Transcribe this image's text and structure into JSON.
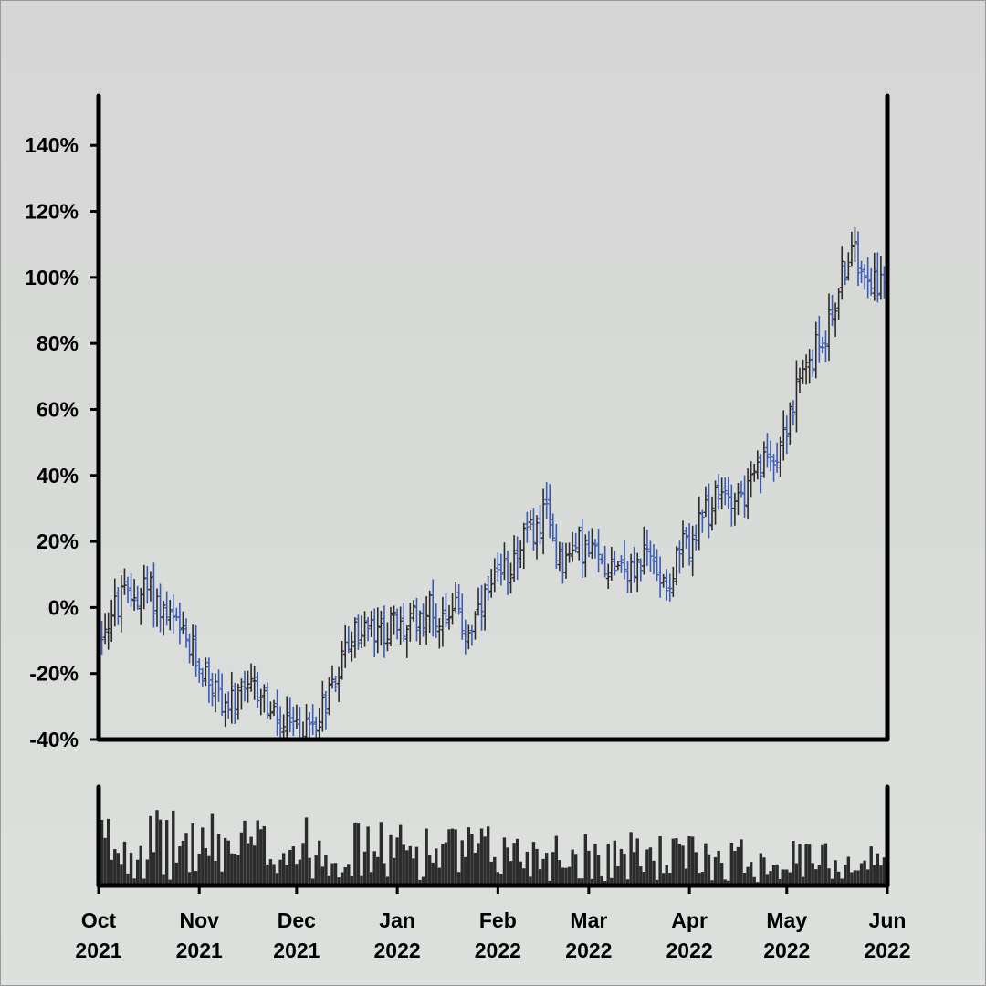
{
  "chart_data": {
    "type": "ohlc",
    "title": "",
    "xlabel": "",
    "ylabel": "",
    "start_date": "2021-10-01",
    "end_date": "2022-06-01",
    "ylim": [
      -40,
      155
    ],
    "y_ticks": [
      {
        "value": 140,
        "label": "140%"
      },
      {
        "value": 120,
        "label": "120%"
      },
      {
        "value": 100,
        "label": "100%"
      },
      {
        "value": 80,
        "label": "80%"
      },
      {
        "value": 60,
        "label": "60%"
      },
      {
        "value": 40,
        "label": "40%"
      },
      {
        "value": 20,
        "label": "20%"
      },
      {
        "value": 0,
        "label": "0%"
      },
      {
        "value": -20,
        "label": "-20%"
      },
      {
        "value": -40,
        "label": "-40%"
      }
    ],
    "x_ticks": [
      {
        "date": "2021-10-01",
        "month": "Oct",
        "year": "2021"
      },
      {
        "date": "2021-11-01",
        "month": "Nov",
        "year": "2021"
      },
      {
        "date": "2021-12-01",
        "month": "Dec",
        "year": "2021"
      },
      {
        "date": "2022-01-01",
        "month": "Jan",
        "year": "2022"
      },
      {
        "date": "2022-02-01",
        "month": "Feb",
        "year": "2022"
      },
      {
        "date": "2022-03-01",
        "month": "Mar",
        "year": "2022"
      },
      {
        "date": "2022-04-01",
        "month": "Apr",
        "year": "2022"
      },
      {
        "date": "2022-05-01",
        "month": "May",
        "year": "2022"
      },
      {
        "date": "2022-06-01",
        "month": "Jun",
        "year": "2022"
      }
    ],
    "trend": [
      {
        "date": "2021-10-01",
        "value": -8
      },
      {
        "date": "2021-10-05",
        "value": -2
      },
      {
        "date": "2021-10-09",
        "value": 3
      },
      {
        "date": "2021-10-13",
        "value": 4
      },
      {
        "date": "2021-10-16",
        "value": 6
      },
      {
        "date": "2021-10-20",
        "value": 0
      },
      {
        "date": "2021-10-24",
        "value": -5
      },
      {
        "date": "2021-10-29",
        "value": -13
      },
      {
        "date": "2021-11-03",
        "value": -20
      },
      {
        "date": "2021-11-08",
        "value": -28
      },
      {
        "date": "2021-11-12",
        "value": -30
      },
      {
        "date": "2021-11-16",
        "value": -26
      },
      {
        "date": "2021-11-20",
        "value": -25
      },
      {
        "date": "2021-11-24",
        "value": -34
      },
      {
        "date": "2021-11-27",
        "value": -37
      },
      {
        "date": "2021-12-01",
        "value": -36
      },
      {
        "date": "2021-12-05",
        "value": -37
      },
      {
        "date": "2021-12-09",
        "value": -30
      },
      {
        "date": "2021-12-13",
        "value": -20
      },
      {
        "date": "2021-12-17",
        "value": -10
      },
      {
        "date": "2021-12-22",
        "value": -6
      },
      {
        "date": "2021-12-26",
        "value": -9
      },
      {
        "date": "2021-12-30",
        "value": -5
      },
      {
        "date": "2022-01-03",
        "value": -7
      },
      {
        "date": "2022-01-07",
        "value": -3
      },
      {
        "date": "2022-01-11",
        "value": 0
      },
      {
        "date": "2022-01-14",
        "value": -4
      },
      {
        "date": "2022-01-18",
        "value": 2
      },
      {
        "date": "2022-01-22",
        "value": -8
      },
      {
        "date": "2022-01-26",
        "value": -3
      },
      {
        "date": "2022-01-30",
        "value": 5
      },
      {
        "date": "2022-02-03",
        "value": 10
      },
      {
        "date": "2022-02-07",
        "value": 18
      },
      {
        "date": "2022-02-10",
        "value": 22
      },
      {
        "date": "2022-02-13",
        "value": 24
      },
      {
        "date": "2022-02-16",
        "value": 28
      },
      {
        "date": "2022-02-19",
        "value": 18
      },
      {
        "date": "2022-02-22",
        "value": 14
      },
      {
        "date": "2022-02-26",
        "value": 19
      },
      {
        "date": "2022-03-02",
        "value": 16
      },
      {
        "date": "2022-03-06",
        "value": 13
      },
      {
        "date": "2022-03-10",
        "value": 15
      },
      {
        "date": "2022-03-14",
        "value": 10
      },
      {
        "date": "2022-03-18",
        "value": 16
      },
      {
        "date": "2022-03-22",
        "value": 12
      },
      {
        "date": "2022-03-26",
        "value": 8
      },
      {
        "date": "2022-03-29",
        "value": 17
      },
      {
        "date": "2022-04-02",
        "value": 20
      },
      {
        "date": "2022-04-06",
        "value": 28
      },
      {
        "date": "2022-04-10",
        "value": 33
      },
      {
        "date": "2022-04-14",
        "value": 35
      },
      {
        "date": "2022-04-18",
        "value": 34
      },
      {
        "date": "2022-04-22",
        "value": 40
      },
      {
        "date": "2022-04-26",
        "value": 46
      },
      {
        "date": "2022-04-29",
        "value": 50
      },
      {
        "date": "2022-05-03",
        "value": 62
      },
      {
        "date": "2022-05-07",
        "value": 72
      },
      {
        "date": "2022-05-10",
        "value": 78
      },
      {
        "date": "2022-05-14",
        "value": 86
      },
      {
        "date": "2022-05-17",
        "value": 97
      },
      {
        "date": "2022-05-20",
        "value": 107
      },
      {
        "date": "2022-05-23",
        "value": 106
      },
      {
        "date": "2022-05-26",
        "value": 103
      },
      {
        "date": "2022-05-29",
        "value": 99
      },
      {
        "date": "2022-06-01",
        "value": 95
      }
    ],
    "colors": {
      "up": "#2a2a2a",
      "down": "#3b5bb5",
      "volume": "#2b2b2b",
      "axis": "#000000"
    }
  }
}
